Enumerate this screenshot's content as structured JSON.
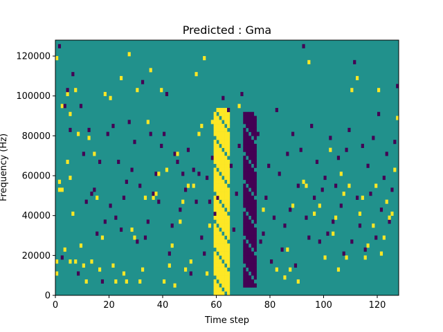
{
  "chart_data": {
    "type": "heatmap",
    "title": "Predicted : Gma",
    "xlabel": "Time step",
    "ylabel": "Frequency (Hz)",
    "xlim": [
      0,
      128
    ],
    "ylim": [
      0,
      128000
    ],
    "xticks": [
      0,
      20,
      40,
      60,
      80,
      100,
      120
    ],
    "yticks": [
      0,
      20000,
      40000,
      60000,
      80000,
      100000,
      120000
    ],
    "colormap": "viridis",
    "colors": {
      "background": "#21918c",
      "high": "#fde725",
      "low": "#440154"
    },
    "grid": false,
    "legend": "none",
    "rows": 64,
    "cols": 128,
    "dominant_value": 0,
    "bright_band": {
      "x": [
        59,
        64
      ],
      "y": [
        0,
        93000
      ],
      "value": 1
    },
    "dark_band": {
      "x": [
        70,
        74
      ],
      "y": [
        5000,
        90000
      ],
      "value": -1
    },
    "scattered_high_cells": [
      [
        0,
        5
      ],
      [
        0,
        8
      ],
      [
        0,
        59
      ],
      [
        1,
        26
      ],
      [
        1,
        28
      ],
      [
        2,
        26
      ],
      [
        2,
        47
      ],
      [
        3,
        11
      ],
      [
        4,
        33
      ],
      [
        4,
        50
      ],
      [
        5,
        8
      ],
      [
        5,
        29
      ],
      [
        5,
        45
      ],
      [
        6,
        20
      ],
      [
        7,
        8
      ],
      [
        7,
        51
      ],
      [
        8,
        40
      ],
      [
        9,
        12
      ],
      [
        10,
        7
      ],
      [
        11,
        3
      ],
      [
        12,
        39
      ],
      [
        13,
        8
      ],
      [
        14,
        35
      ],
      [
        15,
        24
      ],
      [
        16,
        6
      ],
      [
        17,
        14
      ],
      [
        18,
        50
      ],
      [
        19,
        40
      ],
      [
        20,
        49
      ],
      [
        21,
        7
      ],
      [
        22,
        3
      ],
      [
        24,
        54
      ],
      [
        25,
        5
      ],
      [
        26,
        3
      ],
      [
        27,
        60
      ],
      [
        28,
        16
      ],
      [
        29,
        14
      ],
      [
        30,
        51
      ],
      [
        31,
        3
      ],
      [
        32,
        6
      ],
      [
        33,
        24
      ],
      [
        34,
        43
      ],
      [
        35,
        56
      ],
      [
        36,
        24
      ],
      [
        37,
        25
      ],
      [
        38,
        30
      ],
      [
        39,
        51
      ],
      [
        40,
        3
      ],
      [
        41,
        31
      ],
      [
        42,
        7
      ],
      [
        43,
        12
      ],
      [
        44,
        2
      ],
      [
        45,
        35
      ],
      [
        46,
        18
      ],
      [
        47,
        23
      ],
      [
        48,
        6
      ],
      [
        49,
        27
      ],
      [
        50,
        8
      ],
      [
        51,
        27
      ],
      [
        52,
        55
      ],
      [
        53,
        40
      ],
      [
        54,
        42
      ],
      [
        55,
        59
      ],
      [
        56,
        5
      ],
      [
        57,
        17
      ],
      [
        58,
        43
      ],
      [
        59,
        6
      ],
      [
        60,
        34
      ],
      [
        61,
        18
      ],
      [
        62,
        25
      ],
      [
        63,
        4
      ],
      [
        64,
        40
      ],
      [
        68,
        47
      ],
      [
        77,
        21
      ],
      [
        82,
        6
      ],
      [
        85,
        4
      ],
      [
        86,
        11
      ],
      [
        87,
        6
      ],
      [
        88,
        22
      ],
      [
        90,
        3
      ],
      [
        92,
        28
      ],
      [
        93,
        27
      ],
      [
        94,
        58
      ],
      [
        96,
        20
      ],
      [
        98,
        22
      ],
      [
        100,
        9
      ],
      [
        102,
        36
      ],
      [
        103,
        15
      ],
      [
        104,
        19
      ],
      [
        105,
        6
      ],
      [
        106,
        30
      ],
      [
        107,
        25
      ],
      [
        108,
        9
      ],
      [
        109,
        27
      ],
      [
        110,
        51
      ],
      [
        112,
        54
      ],
      [
        113,
        20
      ],
      [
        114,
        24
      ],
      [
        115,
        9
      ],
      [
        116,
        12
      ],
      [
        118,
        17
      ],
      [
        119,
        27
      ],
      [
        120,
        51
      ],
      [
        121,
        10
      ],
      [
        122,
        14
      ],
      [
        123,
        23
      ],
      [
        124,
        19
      ],
      [
        125,
        20
      ],
      [
        126,
        31
      ],
      [
        127,
        44
      ]
    ],
    "scattered_low_cells": [
      [
        1,
        62
      ],
      [
        2,
        9
      ],
      [
        3,
        47
      ],
      [
        4,
        51
      ],
      [
        5,
        41
      ],
      [
        6,
        55
      ],
      [
        8,
        5
      ],
      [
        9,
        47
      ],
      [
        10,
        35
      ],
      [
        11,
        23
      ],
      [
        12,
        41
      ],
      [
        13,
        25
      ],
      [
        14,
        26
      ],
      [
        15,
        15
      ],
      [
        16,
        33
      ],
      [
        17,
        3
      ],
      [
        18,
        18
      ],
      [
        19,
        40
      ],
      [
        20,
        22
      ],
      [
        21,
        42
      ],
      [
        22,
        19
      ],
      [
        23,
        33
      ],
      [
        24,
        16
      ],
      [
        25,
        24
      ],
      [
        26,
        28
      ],
      [
        27,
        43
      ],
      [
        28,
        31
      ],
      [
        29,
        38
      ],
      [
        30,
        13
      ],
      [
        31,
        27
      ],
      [
        32,
        53
      ],
      [
        33,
        14
      ],
      [
        34,
        18
      ],
      [
        35,
        40
      ],
      [
        36,
        25
      ],
      [
        37,
        30
      ],
      [
        38,
        23
      ],
      [
        39,
        37
      ],
      [
        40,
        40
      ],
      [
        41,
        50
      ],
      [
        42,
        10
      ],
      [
        43,
        17
      ],
      [
        44,
        35
      ],
      [
        45,
        33
      ],
      [
        46,
        21
      ],
      [
        47,
        30
      ],
      [
        48,
        26
      ],
      [
        49,
        36
      ],
      [
        50,
        5
      ],
      [
        51,
        31
      ],
      [
        52,
        23
      ],
      [
        53,
        30
      ],
      [
        54,
        14
      ],
      [
        55,
        10
      ],
      [
        56,
        29
      ],
      [
        57,
        23
      ],
      [
        58,
        34
      ],
      [
        59,
        20
      ],
      [
        60,
        24
      ],
      [
        62,
        49
      ],
      [
        64,
        46
      ],
      [
        65,
        32
      ],
      [
        66,
        16
      ],
      [
        67,
        25
      ],
      [
        68,
        37
      ],
      [
        69,
        50
      ],
      [
        75,
        40
      ],
      [
        76,
        13
      ],
      [
        77,
        15
      ],
      [
        78,
        24
      ],
      [
        79,
        32
      ],
      [
        80,
        8
      ],
      [
        81,
        19
      ],
      [
        82,
        46
      ],
      [
        83,
        30
      ],
      [
        84,
        11
      ],
      [
        85,
        17
      ],
      [
        86,
        35
      ],
      [
        87,
        21
      ],
      [
        88,
        40
      ],
      [
        89,
        7
      ],
      [
        90,
        27
      ],
      [
        91,
        36
      ],
      [
        92,
        62
      ],
      [
        93,
        19
      ],
      [
        94,
        14
      ],
      [
        95,
        42
      ],
      [
        96,
        24
      ],
      [
        97,
        33
      ],
      [
        98,
        13
      ],
      [
        99,
        26
      ],
      [
        100,
        29
      ],
      [
        101,
        15
      ],
      [
        102,
        39
      ],
      [
        103,
        18
      ],
      [
        104,
        27
      ],
      [
        105,
        34
      ],
      [
        106,
        22
      ],
      [
        107,
        10
      ],
      [
        108,
        36
      ],
      [
        109,
        41
      ],
      [
        110,
        13
      ],
      [
        111,
        58
      ],
      [
        112,
        24
      ],
      [
        113,
        17
      ],
      [
        114,
        37
      ],
      [
        115,
        11
      ],
      [
        116,
        32
      ],
      [
        117,
        25
      ],
      [
        118,
        39
      ],
      [
        119,
        14
      ],
      [
        120,
        45
      ],
      [
        121,
        21
      ],
      [
        122,
        29
      ],
      [
        123,
        35
      ],
      [
        124,
        18
      ],
      [
        125,
        26
      ],
      [
        126,
        38
      ],
      [
        127,
        52
      ]
    ]
  }
}
